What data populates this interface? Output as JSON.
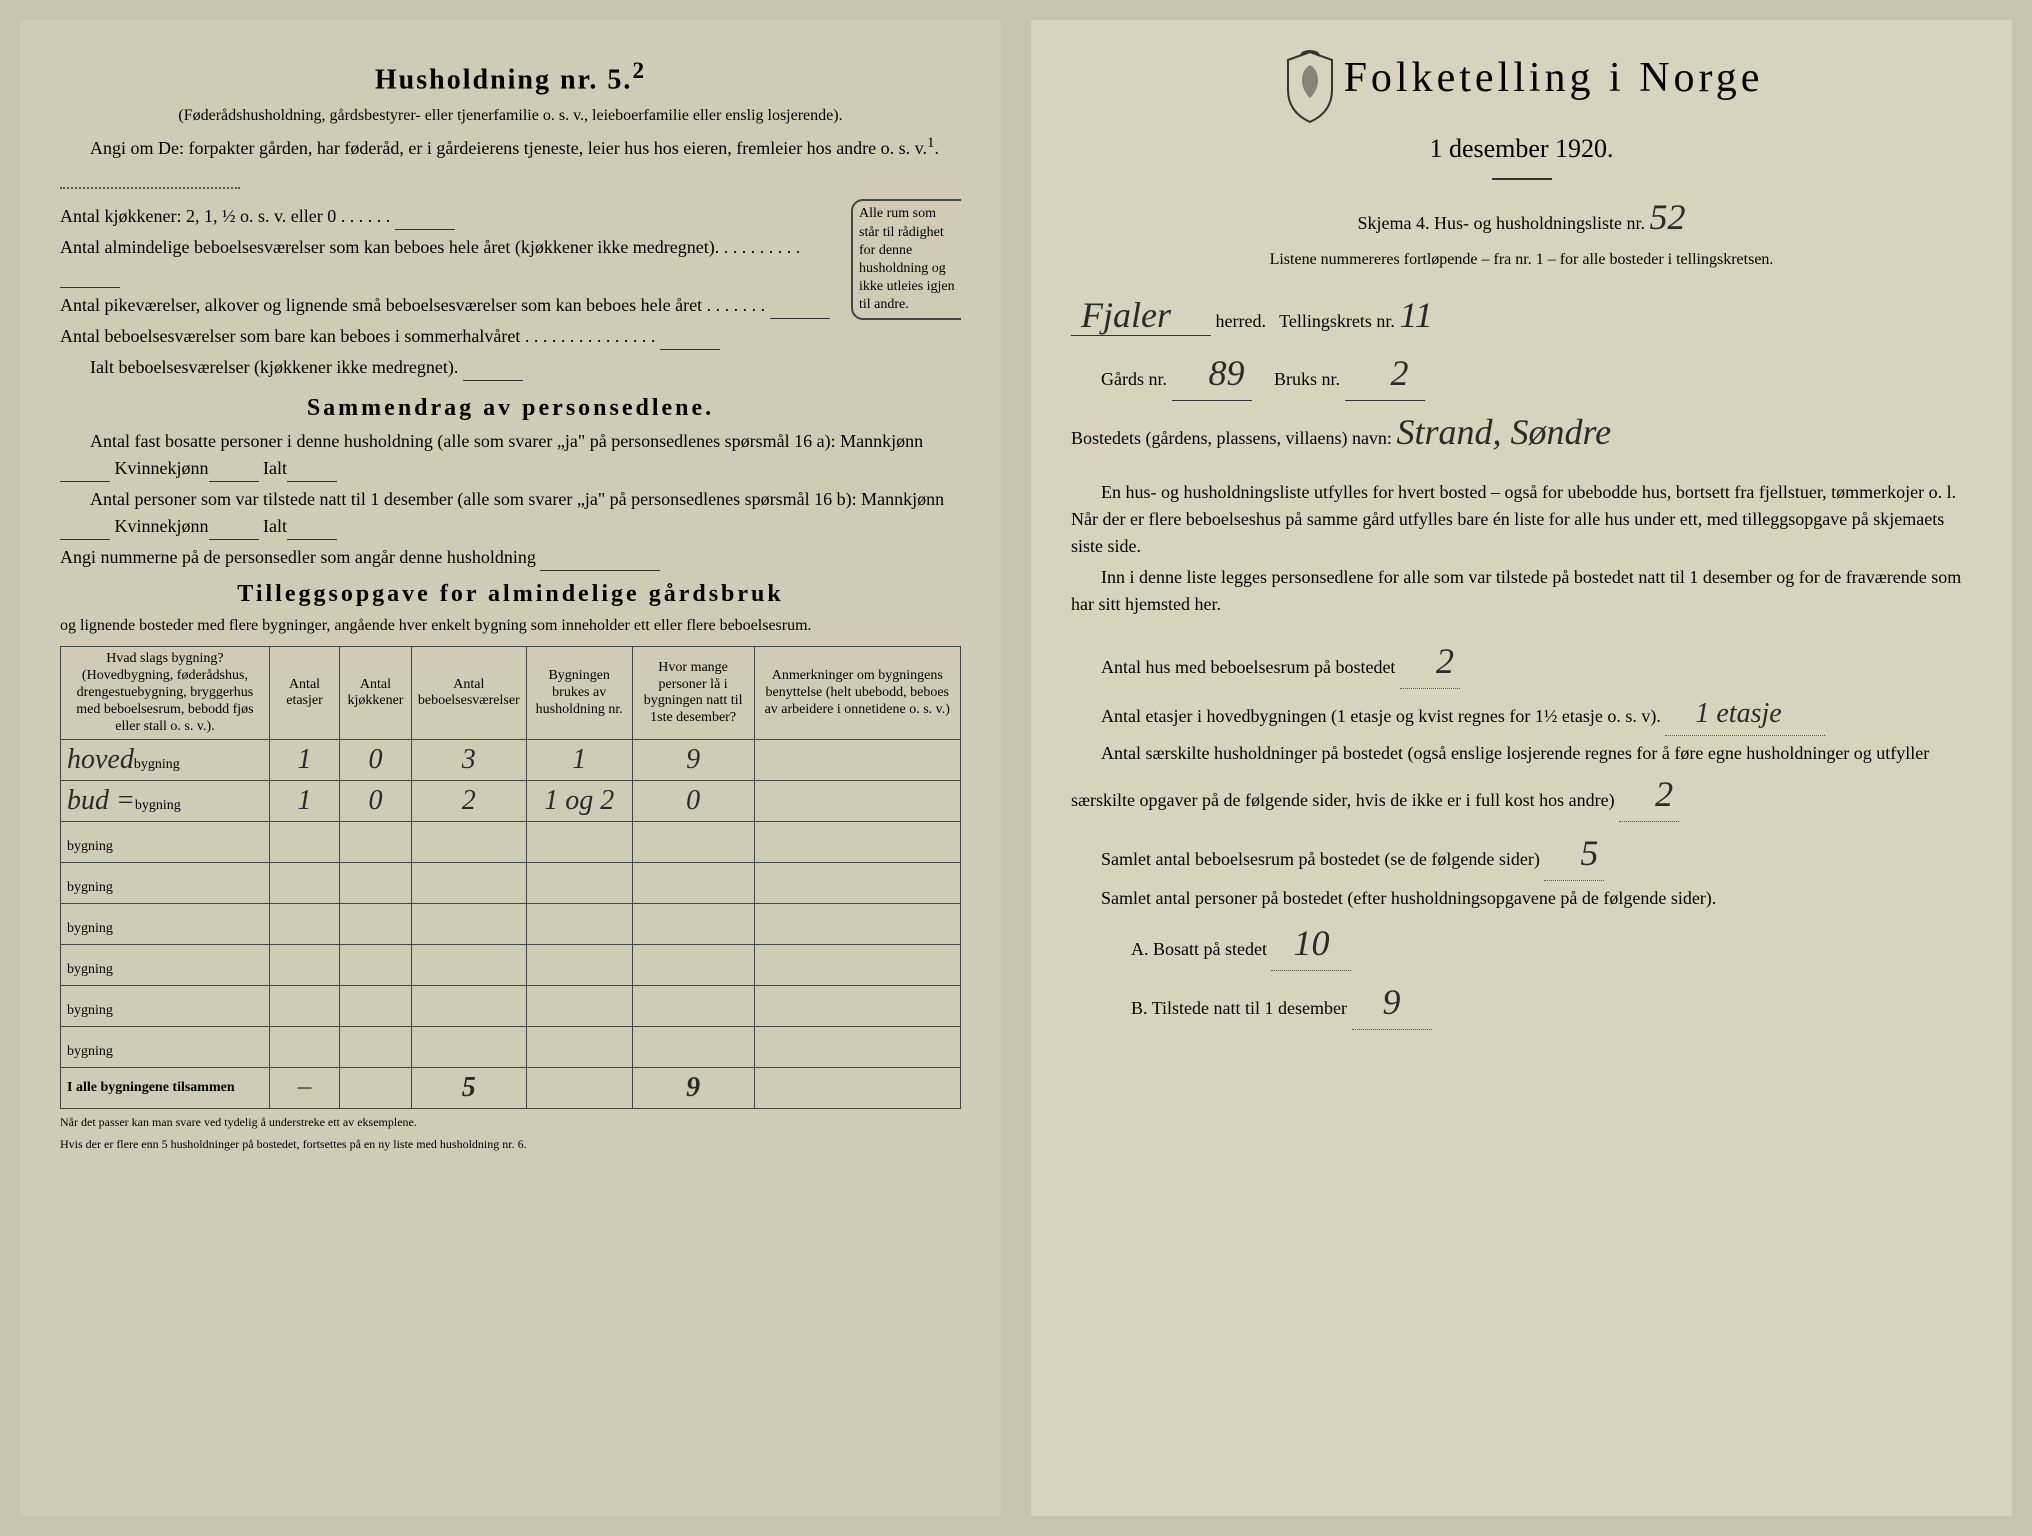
{
  "left": {
    "h5_title": "Husholdning nr. 5.",
    "h5_sup": "2",
    "h5_note": "(Føderådshusholdning, gårdsbestyrer- eller tjenerfamilie o. s. v., leieboerfamilie eller enslig losjerende).",
    "angi_line": "Angi om De: forpakter gården, har føderåd, er i gårdeierens tjeneste, leier hus hos eieren, fremleier hos andre o. s. v.",
    "angi_sup": "1",
    "kitchens_label": "Antal kjøkkener: 2, 1, ½ o. s. v. eller 0",
    "rooms1": "Antal almindelige beboelsesværelser som kan beboes hele året (kjøkkener ikke medregnet).",
    "rooms2": "Antal pikeværelser, alkover og lignende små beboelsesværelser som kan beboes hele året",
    "rooms3": "Antal beboelsesværelser som bare kan beboes i sommerhalvåret",
    "rooms_total": "Ialt beboelsesværelser (kjøkkener ikke medregnet).",
    "bracket_text": "Alle rum som står til rådighet for denne husholdning og ikke utleies igjen til andre.",
    "sammendrag_title": "Sammendrag av personsedlene.",
    "samm1": "Antal fast bosatte personer i denne husholdning (alle som svarer „ja\" på personsedlenes spørsmål 16 a): Mannkjønn",
    "kvinnekjonn": "Kvinnekjønn",
    "ialt": "Ialt",
    "samm2": "Antal personer som var tilstede natt til 1 desember (alle som svarer „ja\" på personsedlenes spørsmål 16 b): Mannkjønn",
    "angi_num": "Angi nummerne på de personsedler som angår denne husholdning",
    "tillegg_title": "Tilleggsopgave for almindelige gårdsbruk",
    "tillegg_sub": "og lignende bosteder med flere bygninger, angående hver enkelt bygning som inneholder ett eller flere beboelsesrum.",
    "table": {
      "headers": [
        "Hvad slags bygning?\n(Hovedbygning, føderådshus, drengestuebygning, bryggerhus med beboelsesrum, bebodd fjøs eller stall o. s. v.).",
        "Antal etasjer",
        "Antal kjøkkener",
        "Antal beboelsesværelser",
        "Bygningen brukes av husholdning nr.",
        "Hvor mange personer lå i bygningen natt til 1ste desember?",
        "Anmerkninger om bygningens benyttelse (helt ubebodd, beboes av arbeidere i onnetidene o. s. v.)"
      ],
      "row_suffix": "bygning",
      "rows": [
        {
          "name": "hoved",
          "etasjer": "1",
          "kjokken": "0",
          "vaer": "3",
          "hush": "1",
          "pers": "9",
          "anm": ""
        },
        {
          "name": "bud =",
          "etasjer": "1",
          "kjokken": "0",
          "vaer": "2",
          "hush": "1 og 2",
          "pers": "0",
          "anm": ""
        },
        {
          "name": "",
          "etasjer": "",
          "kjokken": "",
          "vaer": "",
          "hush": "",
          "pers": "",
          "anm": ""
        },
        {
          "name": "",
          "etasjer": "",
          "kjokken": "",
          "vaer": "",
          "hush": "",
          "pers": "",
          "anm": ""
        },
        {
          "name": "",
          "etasjer": "",
          "kjokken": "",
          "vaer": "",
          "hush": "",
          "pers": "",
          "anm": ""
        },
        {
          "name": "",
          "etasjer": "",
          "kjokken": "",
          "vaer": "",
          "hush": "",
          "pers": "",
          "anm": ""
        },
        {
          "name": "",
          "etasjer": "",
          "kjokken": "",
          "vaer": "",
          "hush": "",
          "pers": "",
          "anm": ""
        },
        {
          "name": "",
          "etasjer": "",
          "kjokken": "",
          "vaer": "",
          "hush": "",
          "pers": "",
          "anm": ""
        }
      ],
      "footer_label": "I alle bygningene tilsammen",
      "footer": {
        "etasjer": "—",
        "kjokken": "",
        "vaer": "5",
        "hush": "",
        "pers": "9",
        "anm": ""
      }
    },
    "footnote1": "Når det passer kan man svare ved tydelig å understreke ett av eksemplene.",
    "footnote2": "Hvis der er flere enn 5 husholdninger på bostedet, fortsettes på en ny liste med husholdning nr. 6."
  },
  "right": {
    "title": "Folketelling i Norge",
    "subtitle": "1 desember 1920.",
    "skjema": "Skjema 4. Hus- og husholdningsliste nr.",
    "liste_nr": "52",
    "listene_text": "Listene nummereres fortløpende – fra nr. 1 – for alle bosteder i tellingskretsen.",
    "herred_value": "Fjaler",
    "herred_label": "herred.",
    "tellingskrets_label": "Tellingskrets nr.",
    "tellingskrets_value": "11",
    "gards_label": "Gårds nr.",
    "gards_value": "89",
    "bruks_label": "Bruks nr.",
    "bruks_value": "2",
    "bosted_label": "Bostedets (gårdens, plassens, villaens) navn:",
    "bosted_value": "Strand, Søndre",
    "para1": "En hus- og husholdningsliste utfylles for hvert bosted – også for ubebodde hus, bortsett fra fjellstuer, tømmerkojer o. l. Når der er flere beboelseshus på samme gård utfylles bare én liste for alle hus under ett, med tilleggsopgave på skjemaets siste side.",
    "para2": "Inn i denne liste legges personsedlene for alle som var tilstede på bostedet natt til 1 desember og for de fraværende som har sitt hjemsted her.",
    "antal_hus_label": "Antal hus med beboelsesrum på bostedet",
    "antal_hus_value": "2",
    "etasjer_label": "Antal etasjer i hovedbygningen (1 etasje og kvist regnes for 1½ etasje o. s. v).",
    "etasjer_value": "1 etasje",
    "saer_label": "Antal særskilte husholdninger på bostedet (også enslige losjerende regnes for å føre egne husholdninger og utfyller særskilte opgaver på de følgende sider, hvis de ikke er i full kost hos andre)",
    "saer_value": "2",
    "samlet_rum_label": "Samlet antal beboelsesrum på bostedet (se de følgende sider)",
    "samlet_rum_value": "5",
    "samlet_pers_label": "Samlet antal personer på bostedet (efter husholdningsopgavene på de følgende sider).",
    "bosatt_label": "A. Bosatt på stedet",
    "bosatt_value": "10",
    "tilstede_label": "B. Tilstede natt til 1 desember",
    "tilstede_value": "9"
  },
  "colors": {
    "paper": "#d4cfb8",
    "ink": "#222222",
    "handwriting": "#2a2a2a"
  }
}
